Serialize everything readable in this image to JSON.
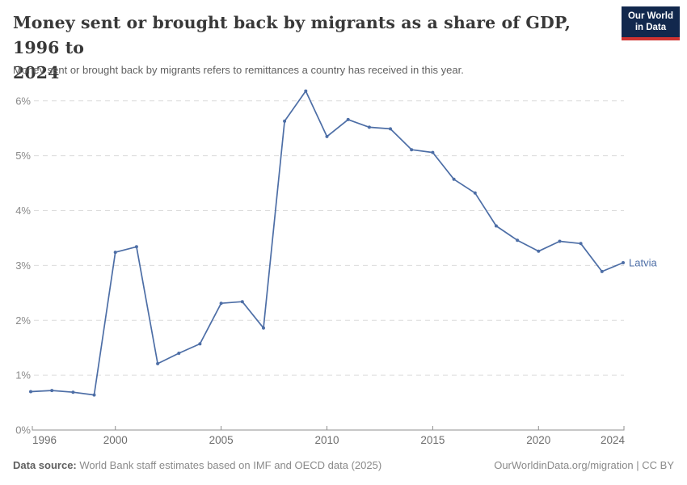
{
  "header": {
    "title_line1": "Money sent or brought back by migrants as a share of GDP, 1996 to",
    "title_line2": "2024",
    "subtitle": "Money sent or brought back by migrants refers to remittances a country has received in this year.",
    "logo": {
      "line1": "Our World",
      "line2": "in Data",
      "bg_color": "#12284d",
      "accent_color": "#cf3331"
    }
  },
  "chart_data": {
    "type": "line",
    "title": "Money sent or brought back by migrants as a share of GDP, 1996 to 2024",
    "xlabel": "",
    "ylabel": "",
    "x": [
      1996,
      1997,
      1998,
      1999,
      2000,
      2001,
      2002,
      2003,
      2004,
      2005,
      2006,
      2007,
      2008,
      2009,
      2010,
      2011,
      2012,
      2013,
      2014,
      2015,
      2016,
      2017,
      2018,
      2019,
      2020,
      2021,
      2022,
      2023,
      2024
    ],
    "series": [
      {
        "name": "Latvia",
        "color": "#4d6ea6",
        "values": [
          0.7,
          0.72,
          0.69,
          0.64,
          3.24,
          3.34,
          1.21,
          1.4,
          1.57,
          2.31,
          2.34,
          1.86,
          5.63,
          6.18,
          5.35,
          5.66,
          5.52,
          5.49,
          5.11,
          5.06,
          4.57,
          4.32,
          3.72,
          3.46,
          3.26,
          3.44,
          3.4,
          2.89,
          3.05
        ]
      }
    ],
    "x_ticks": [
      1996,
      2000,
      2005,
      2010,
      2015,
      2020,
      2024
    ],
    "y_ticks": [
      0,
      1,
      2,
      3,
      4,
      5,
      6
    ],
    "y_tick_suffix": "%",
    "xlim": [
      1996,
      2024
    ],
    "ylim": [
      0,
      6.2
    ],
    "grid": "horizontal-dashed",
    "legend_position": "end-of-line",
    "colors": {
      "line": "#4d6ea6",
      "gridline": "#dcdcdc",
      "axis": "#8f8f8f",
      "y_tick_label": "#8a8a8a",
      "x_tick_label": "#6e6e6e"
    }
  },
  "footer": {
    "source_label": "Data source:",
    "source_text": " World Bank staff estimates based on IMF and OECD data (2025)",
    "attribution": "OurWorldinData.org/migration | CC BY"
  }
}
